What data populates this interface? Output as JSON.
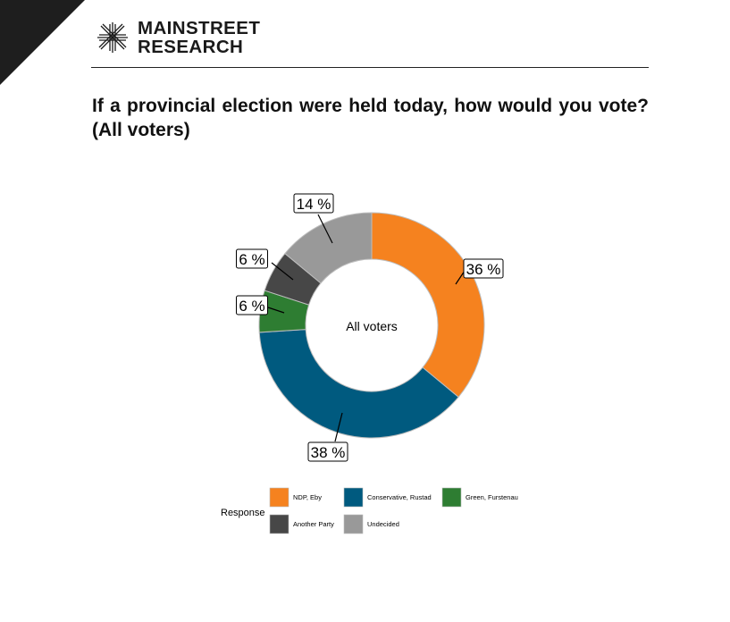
{
  "brand": {
    "line1": "MAINSTREET",
    "line2": "RESEARCH"
  },
  "question": "If a provincial election were held today, how would you vote? (All voters)",
  "colors": {
    "ndp": "#f5821f",
    "conservative": "#005a7f",
    "green": "#2e7d32",
    "other": "#474747",
    "undecided": "#999999"
  },
  "chart_data": {
    "type": "pie",
    "donut": true,
    "center_label": "All voters",
    "legend_title": "Response",
    "legend_position": "bottom",
    "label_suffix": " %",
    "slices": [
      {
        "name": "NDP, Eby",
        "value": 36,
        "color": "#f5821f"
      },
      {
        "name": "Conservative, Rustad",
        "value": 38,
        "color": "#005a7f"
      },
      {
        "name": "Green, Furstenau",
        "value": 6,
        "color": "#2e7d32"
      },
      {
        "name": "Another Party",
        "value": 6,
        "color": "#474747"
      },
      {
        "name": "Undecided",
        "value": 14,
        "color": "#999999"
      }
    ]
  }
}
